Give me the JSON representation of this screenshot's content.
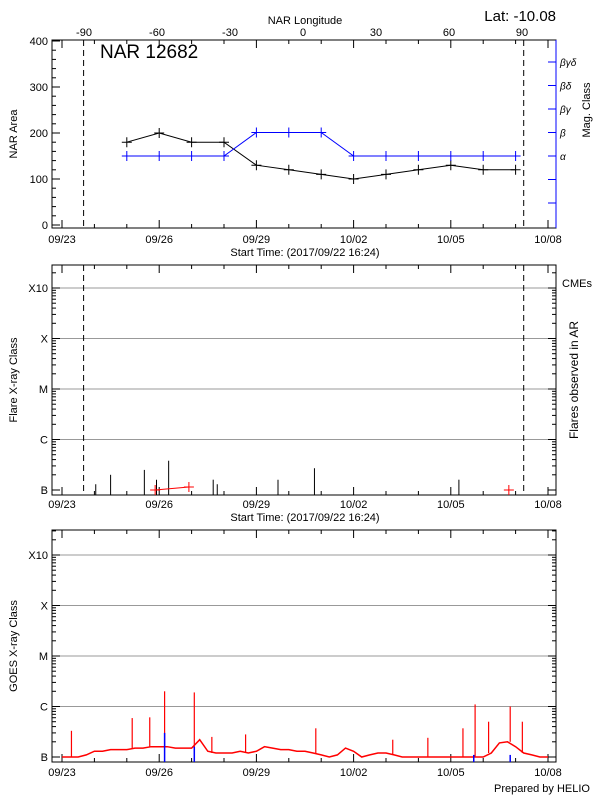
{
  "header": {
    "lat_label": "Lat: -10.08",
    "start_time_label": "Start Time: (2017/09/22 16:24)",
    "prepared_by": "Prepared by HELIO"
  },
  "colors": {
    "axis": "#000000",
    "mag": "#0000ff",
    "goes": "#ff0000",
    "cme": "#ff0000",
    "grid": "#999999"
  },
  "time_axis": {
    "ticks": [
      "09/23",
      "09/26",
      "09/29",
      "10/02",
      "10/05",
      "10/08"
    ],
    "range": [
      "09/23 00:00",
      "10/08 00:00"
    ],
    "year": 2017
  },
  "chart_data": [
    {
      "type": "line",
      "title": "NAR 12682",
      "xlabel": "Start Time: (2017/09/22 16:24)",
      "ylabel": "NAR Area",
      "y2label": "Mag. Class",
      "top_xlabel": "NAR Longitude",
      "top_ticks": [
        -90,
        -60,
        -30,
        0,
        30,
        60,
        90
      ],
      "ylim": [
        0,
        400
      ],
      "yticks": [
        0,
        100,
        200,
        300,
        400
      ],
      "mag_class_levels": [
        "α",
        "β",
        "βγ",
        "βδ",
        "βγδ"
      ],
      "limb_lines": [
        "09/23 16:00",
        "10/07 06:00"
      ],
      "dates": [
        "09/25",
        "09/26",
        "09/27",
        "09/28",
        "09/29",
        "09/30",
        "10/01",
        "10/02",
        "10/03",
        "10/04",
        "10/05",
        "10/06",
        "10/07"
      ],
      "series": [
        {
          "values": [
            180,
            200,
            180,
            180,
            130,
            120,
            110,
            100,
            110,
            120,
            130,
            120,
            120
          ]
        },
        {
          "values": [
            "α",
            "α",
            "α",
            "α",
            "β",
            "β",
            "β",
            "α",
            "α",
            "α",
            "α",
            "α",
            "α"
          ]
        }
      ]
    },
    {
      "type": "bar",
      "ylabel": "Flare X-ray Class",
      "y2label": "Flares observed in AR",
      "legend": "CMEs",
      "xlabel": "Start Time: (2017/09/22 16:24)",
      "yticks": [
        "B",
        "C",
        "M",
        "X",
        "X10"
      ],
      "flares": [
        {
          "time": "09/24 01:00",
          "class": "B1.3"
        },
        {
          "time": "09/24 12:00",
          "class": "B2.0"
        },
        {
          "time": "09/25 13:00",
          "class": "B2.5"
        },
        {
          "time": "09/25 22:00",
          "class": "B1.6"
        },
        {
          "time": "09/26 07:00",
          "class": "B3.8"
        },
        {
          "time": "09/27 16:00",
          "class": "B1.6"
        },
        {
          "time": "09/27 19:00",
          "class": "B1.3"
        },
        {
          "time": "09/29 16:00",
          "class": "B1.6"
        },
        {
          "time": "09/30 19:00",
          "class": "B2.7"
        },
        {
          "time": "10/05 06:00",
          "class": "B1.6"
        }
      ],
      "cmes": [
        "09/25 21:00",
        "09/26 22:00",
        "10/06 19:00"
      ]
    },
    {
      "type": "line",
      "ylabel": "GOES X-ray Class",
      "xlabel": "",
      "yticks": [
        "B",
        "C",
        "M",
        "X",
        "X10"
      ],
      "background_start": "09/23 00:00",
      "background_step_hours": 6,
      "background_B_units": [
        1.0,
        1.0,
        1.0,
        1.1,
        1.3,
        1.3,
        1.4,
        1.4,
        1.4,
        1.5,
        1.5,
        1.6,
        1.6,
        1.6,
        1.5,
        1.5,
        1.5,
        2.2,
        1.3,
        1.2,
        1.2,
        1.2,
        1.3,
        1.2,
        1.3,
        1.6,
        1.5,
        1.4,
        1.4,
        1.3,
        1.3,
        1.2,
        1.1,
        1.0,
        1.1,
        1.5,
        1.3,
        1.0,
        1.1,
        1.2,
        1.2,
        1.1,
        1.0,
        1.0,
        1.0,
        1.0,
        1.0,
        1.0,
        1.0,
        1.0,
        1.0,
        1.0,
        1.0,
        1.2,
        1.9,
        2.0,
        1.6,
        1.2,
        1.1,
        1.0,
        1.0
      ],
      "peaks": [
        {
          "time": "09/23 07:00",
          "class": "B3.3"
        },
        {
          "time": "09/25 04:00",
          "class": "B5.9"
        },
        {
          "time": "09/25 17:00",
          "class": "B6.1"
        },
        {
          "time": "09/26 04:00",
          "class": "C2.0"
        },
        {
          "time": "09/27 02:00",
          "class": "C1.9"
        },
        {
          "time": "09/27 15:00",
          "class": "B2.5"
        },
        {
          "time": "09/28 16:00",
          "class": "B2.8"
        },
        {
          "time": "09/30 20:00",
          "class": "B3.7"
        },
        {
          "time": "10/03 05:00",
          "class": "B2.2"
        },
        {
          "time": "10/04 07:00",
          "class": "B2.4"
        },
        {
          "time": "10/05 09:00",
          "class": "B3.7"
        },
        {
          "time": "10/05 18:00",
          "class": "C1.1"
        },
        {
          "time": "10/06 04:00",
          "class": "B5.0"
        },
        {
          "time": "10/06 20:00",
          "class": "C1.0"
        },
        {
          "time": "10/07 05:00",
          "class": "B5.0"
        }
      ],
      "flare_markers": [
        {
          "time": "09/26 04:00",
          "class": "B3.0"
        },
        {
          "time": "09/27 02:00",
          "class": "B1.6"
        },
        {
          "time": "10/05 17:00",
          "class": "B1.1"
        },
        {
          "time": "10/06 20:00",
          "class": "B1.1"
        }
      ]
    }
  ]
}
